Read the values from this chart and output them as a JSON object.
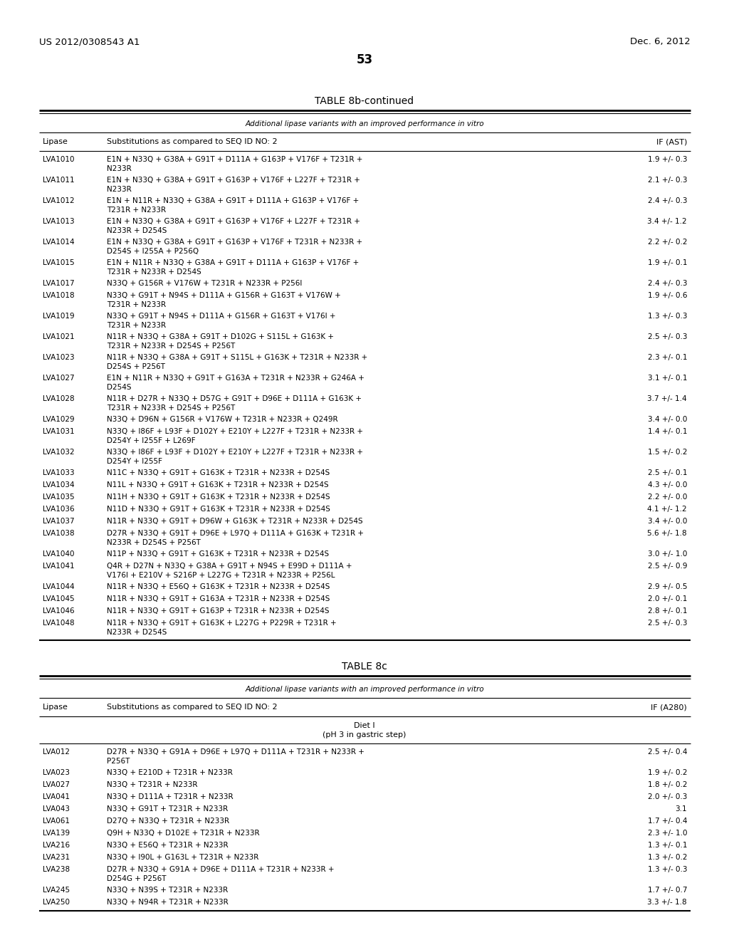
{
  "header_left": "US 2012/0308543 A1",
  "header_right": "Dec. 6, 2012",
  "page_number": "53",
  "table1_title": "TABLE 8b-continued",
  "table1_subtitle": "Additional lipase variants with an improved performance in vitro",
  "table1_col1": "Lipase",
  "table1_col2": "Substitutions as compared to SEQ ID NO: 2",
  "table1_col3": "IF (AST)",
  "table1_rows": [
    [
      "LVA1010",
      "E1N + N33Q + G38A + G91T + D111A + G163P + V176F + T231R +\nN233R",
      "1.9 +/- 0.3"
    ],
    [
      "LVA1011",
      "E1N + N33Q + G38A + G91T + G163P + V176F + L227F + T231R +\nN233R",
      "2.1 +/- 0.3"
    ],
    [
      "LVA1012",
      "E1N + N11R + N33Q + G38A + G91T + D111A + G163P + V176F +\nT231R + N233R",
      "2.4 +/- 0.3"
    ],
    [
      "LVA1013",
      "E1N + N33Q + G38A + G91T + G163P + V176F + L227F + T231R +\nN233R + D254S",
      "3.4 +/- 1.2"
    ],
    [
      "LVA1014",
      "E1N + N33Q + G38A + G91T + G163P + V176F + T231R + N233R +\nD254S + I255A + P256Q",
      "2.2 +/- 0.2"
    ],
    [
      "LVA1015",
      "E1N + N11R + N33Q + G38A + G91T + D111A + G163P + V176F +\nT231R + N233R + D254S",
      "1.9 +/- 0.1"
    ],
    [
      "LVA1017",
      "N33Q + G156R + V176W + T231R + N233R + P256I",
      "2.4 +/- 0.3"
    ],
    [
      "LVA1018",
      "N33Q + G91T + N94S + D111A + G156R + G163T + V176W +\nT231R + N233R",
      "1.9 +/- 0.6"
    ],
    [
      "LVA1019",
      "N33Q + G91T + N94S + D111A + G156R + G163T + V176I +\nT231R + N233R",
      "1.3 +/- 0.3"
    ],
    [
      "LVA1021",
      "N11R + N33Q + G38A + G91T + D102G + S115L + G163K +\nT231R + N233R + D254S + P256T",
      "2.5 +/- 0.3"
    ],
    [
      "LVA1023",
      "N11R + N33Q + G38A + G91T + S115L + G163K + T231R + N233R +\nD254S + P256T",
      "2.3 +/- 0.1"
    ],
    [
      "LVA1027",
      "E1N + N11R + N33Q + G91T + G163A + T231R + N233R + G246A +\nD254S",
      "3.1 +/- 0.1"
    ],
    [
      "LVA1028",
      "N11R + D27R + N33Q + D57G + G91T + D96E + D111A + G163K +\nT231R + N233R + D254S + P256T",
      "3.7 +/- 1.4"
    ],
    [
      "LVA1029",
      "N33Q + D96N + G156R + V176W + T231R + N233R + Q249R",
      "3.4 +/- 0.0"
    ],
    [
      "LVA1031",
      "N33Q + I86F + L93F + D102Y + E210Y + L227F + T231R + N233R +\nD254Y + I255F + L269F",
      "1.4 +/- 0.1"
    ],
    [
      "LVA1032",
      "N33Q + I86F + L93F + D102Y + E210Y + L227F + T231R + N233R +\nD254Y + I255F",
      "1.5 +/- 0.2"
    ],
    [
      "LVA1033",
      "N11C + N33Q + G91T + G163K + T231R + N233R + D254S",
      "2.5 +/- 0.1"
    ],
    [
      "LVA1034",
      "N11L + N33Q + G91T + G163K + T231R + N233R + D254S",
      "4.3 +/- 0.0"
    ],
    [
      "LVA1035",
      "N11H + N33Q + G91T + G163K + T231R + N233R + D254S",
      "2.2 +/- 0.0"
    ],
    [
      "LVA1036",
      "N11D + N33Q + G91T + G163K + T231R + N233R + D254S",
      "4.1 +/- 1.2"
    ],
    [
      "LVA1037",
      "N11R + N33Q + G91T + D96W + G163K + T231R + N233R + D254S",
      "3.4 +/- 0.0"
    ],
    [
      "LVA1038",
      "D27R + N33Q + G91T + D96E + L97Q + D111A + G163K + T231R +\nN233R + D254S + P256T",
      "5.6 +/- 1.8"
    ],
    [
      "LVA1040",
      "N11P + N33Q + G91T + G163K + T231R + N233R + D254S",
      "3.0 +/- 1.0"
    ],
    [
      "LVA1041",
      "Q4R + D27N + N33Q + G38A + G91T + N94S + E99D + D111A +\nV176I + E210V + S216P + L227G + T231R + N233R + P256L",
      "2.5 +/- 0.9"
    ],
    [
      "LVA1044",
      "N11R + N33Q + E56Q + G163K + T231R + N233R + D254S",
      "2.9 +/- 0.5"
    ],
    [
      "LVA1045",
      "N11R + N33Q + G91T + G163A + T231R + N233R + D254S",
      "2.0 +/- 0.1"
    ],
    [
      "LVA1046",
      "N11R + N33Q + G91T + G163P + T231R + N233R + D254S",
      "2.8 +/- 0.1"
    ],
    [
      "LVA1048",
      "N11R + N33Q + G91T + G163K + L227G + P229R + T231R +\nN233R + D254S",
      "2.5 +/- 0.3"
    ]
  ],
  "table2_title": "TABLE 8c",
  "table2_subtitle": "Additional lipase variants with an improved performance in vitro",
  "table2_col1": "Lipase",
  "table2_col2": "Substitutions as compared to SEQ ID NO: 2",
  "table2_col3": "IF (A280)",
  "table2_section_line1": "Diet I",
  "table2_section_line2": "(pH 3 in gastric step)",
  "table2_rows": [
    [
      "LVA012",
      "D27R + N33Q + G91A + D96E + L97Q + D111A + T231R + N233R +\nP256T",
      "2.5 +/- 0.4"
    ],
    [
      "LVA023",
      "N33Q + E210D + T231R + N233R",
      "1.9 +/- 0.2"
    ],
    [
      "LVA027",
      "N33Q + T231R + N233R",
      "1.8 +/- 0.2"
    ],
    [
      "LVA041",
      "N33Q + D111A + T231R + N233R",
      "2.0 +/- 0.3"
    ],
    [
      "LVA043",
      "N33Q + G91T + T231R + N233R",
      "3.1"
    ],
    [
      "LVA061",
      "D27Q + N33Q + T231R + N233R",
      "1.7 +/- 0.4"
    ],
    [
      "LVA139",
      "Q9H + N33Q + D102E + T231R + N233R",
      "2.3 +/- 1.0"
    ],
    [
      "LVA216",
      "N33Q + E56Q + T231R + N233R",
      "1.3 +/- 0.1"
    ],
    [
      "LVA231",
      "N33Q + I90L + G163L + T231R + N233R",
      "1.3 +/- 0.2"
    ],
    [
      "LVA238",
      "D27R + N33Q + G91A + D96E + D111A + T231R + N233R +\nD254G + P256T",
      "1.3 +/- 0.3"
    ],
    [
      "LVA245",
      "N33Q + N39S + T231R + N233R",
      "1.7 +/- 0.7"
    ],
    [
      "LVA250",
      "N33Q + N94R + T231R + N233R",
      "3.3 +/- 1.8"
    ]
  ],
  "bg_color": "#ffffff",
  "text_color": "#000000"
}
